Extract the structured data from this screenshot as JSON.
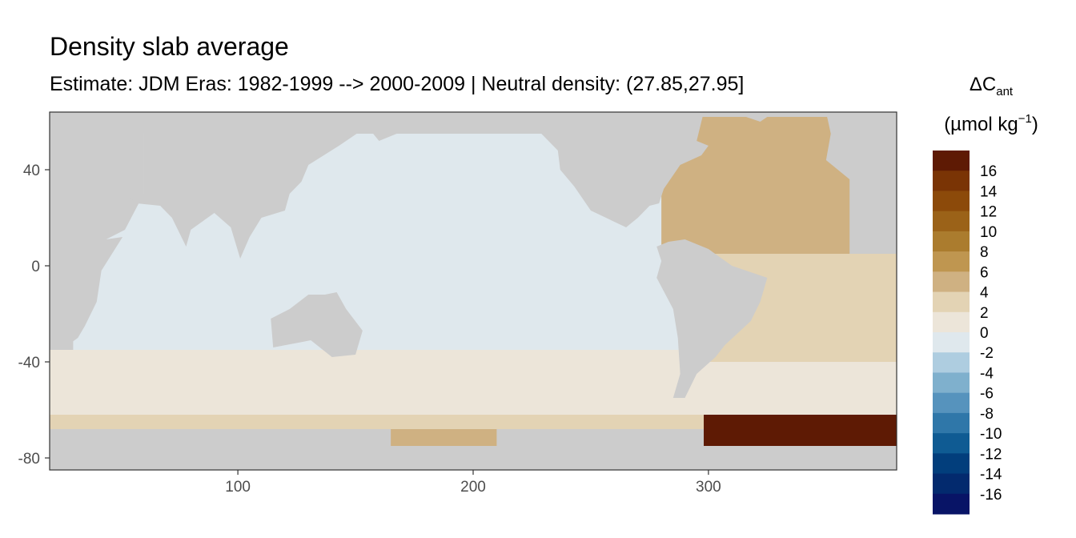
{
  "chart_data": {
    "type": "heatmap",
    "title": "Density slab average",
    "subtitle": "Estimate: JDM Eras: 1982-1999 --> 2000-2009 | Neutral density: (27.85,27.95]",
    "xlabel": "",
    "ylabel": "",
    "xlim": [
      20,
      380
    ],
    "ylim": [
      -85,
      64
    ],
    "x_ticks": [
      100,
      200,
      300
    ],
    "y_ticks": [
      40,
      0,
      -40,
      -80
    ],
    "grid": false,
    "land_color": "#cccccc",
    "no_data_color": "#ffffff",
    "colorbar": {
      "title_main": "ΔC",
      "title_sub": "ant",
      "unit_prefix": "(µmol kg",
      "unit_exp": "−1",
      "unit_suffix": ")",
      "placement": "right",
      "bins": [
        {
          "lower": 16,
          "upper": 18,
          "color": "#5e1a04"
        },
        {
          "lower": 14,
          "upper": 16,
          "color": "#7a3405"
        },
        {
          "lower": 12,
          "upper": 14,
          "color": "#8c4a0a"
        },
        {
          "lower": 10,
          "upper": 12,
          "color": "#9b6218"
        },
        {
          "lower": 8,
          "upper": 10,
          "color": "#ab7c2e"
        },
        {
          "lower": 6,
          "upper": 8,
          "color": "#bf9650"
        },
        {
          "lower": 4,
          "upper": 6,
          "color": "#cfb182"
        },
        {
          "lower": 2,
          "upper": 4,
          "color": "#e3d3b4"
        },
        {
          "lower": 0,
          "upper": 2,
          "color": "#ece5d9"
        },
        {
          "lower": -2,
          "upper": 0,
          "color": "#dfe8ed"
        },
        {
          "lower": -4,
          "upper": -2,
          "color": "#aecde0"
        },
        {
          "lower": -6,
          "upper": -4,
          "color": "#7fb0cd"
        },
        {
          "lower": -8,
          "upper": -6,
          "color": "#5693bd"
        },
        {
          "lower": -10,
          "upper": -8,
          "color": "#2f77a9"
        },
        {
          "lower": -12,
          "upper": -10,
          "color": "#0f5b93"
        },
        {
          "lower": -14,
          "upper": -12,
          "color": "#023e7c"
        },
        {
          "lower": -16,
          "upper": -14,
          "color": "#032a6e"
        },
        {
          "lower": -18,
          "upper": -16,
          "color": "#081466"
        }
      ],
      "labels": [
        {
          "text": "16",
          "value": 16
        },
        {
          "text": "14",
          "value": 14
        },
        {
          "text": "12",
          "value": 12
        },
        {
          "text": "10",
          "value": 10
        },
        {
          "text": "8",
          "value": 8
        },
        {
          "text": "6",
          "value": 6
        },
        {
          "text": "4",
          "value": 4
        },
        {
          "text": "2",
          "value": 2
        },
        {
          "text": "0",
          "value": 0
        },
        {
          "text": "-2",
          "value": -2
        },
        {
          "text": "-4",
          "value": -4
        },
        {
          "text": "-6",
          "value": -6
        },
        {
          "text": "-8",
          "value": -8
        },
        {
          "text": "-10",
          "value": -10
        },
        {
          "text": "-12",
          "value": -12
        },
        {
          "text": "-14",
          "value": -14
        },
        {
          "text": "-16",
          "value": -16
        }
      ]
    },
    "regions": [
      {
        "name": "southern-ocean-band",
        "value": 1,
        "lon_min": 20,
        "lon_max": 380,
        "lat_min": -62,
        "lat_max": -35
      },
      {
        "name": "pacific-indian-subtropics",
        "value": -1,
        "lon_min": 30,
        "lon_max": 300,
        "lat_min": -35,
        "lat_max": 55
      },
      {
        "name": "north-atlantic",
        "value": 4.5,
        "lon_min": 280,
        "lon_max": 360,
        "lat_min": 5,
        "lat_max": 62
      },
      {
        "name": "south-atlantic",
        "value": 3,
        "lon_min": 300,
        "lon_max": 380,
        "lat_min": -40,
        "lat_max": 5
      },
      {
        "name": "weddell-sea",
        "value": 16.5,
        "lon_min": 298,
        "lon_max": 380,
        "lat_min": -77,
        "lat_max": -62
      },
      {
        "name": "ross-sea-shelf",
        "value": 5,
        "lon_min": 165,
        "lon_max": 210,
        "lat_min": -78,
        "lat_max": -68
      },
      {
        "name": "antarctic-margin",
        "value": 3,
        "lon_min": 20,
        "lon_max": 298,
        "lat_min": -68,
        "lat_max": -62
      }
    ]
  }
}
